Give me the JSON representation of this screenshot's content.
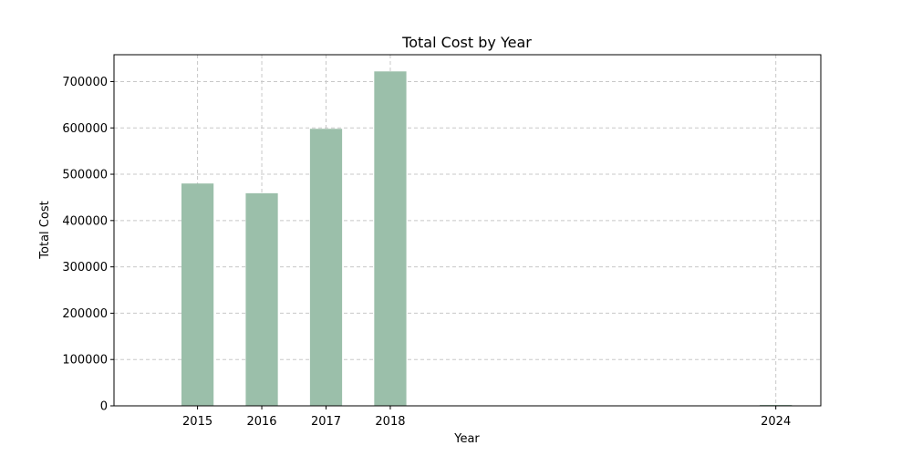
{
  "chart_data": {
    "type": "bar",
    "title": "Total Cost by Year",
    "xlabel": "Year",
    "ylabel": "Total Cost",
    "x": [
      2015,
      2016,
      2017,
      2018,
      2024
    ],
    "values": [
      480000,
      459000,
      598000,
      722000,
      0
    ],
    "xticks": [
      "2015",
      "2016",
      "2017",
      "2018",
      "2024"
    ],
    "yticks": [
      0,
      100000,
      200000,
      300000,
      400000,
      500000,
      600000,
      700000
    ],
    "xlim": [
      2013.7,
      2024.7
    ],
    "ylim": [
      0,
      758000
    ],
    "grid": true,
    "grid_style": "dashed",
    "bar_color": "#9bbfaa",
    "grid_color": "#c8c8c8"
  }
}
